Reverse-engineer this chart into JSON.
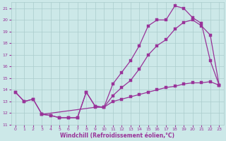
{
  "xlabel": "Windchill (Refroidissement éolien,°C)",
  "bg_color": "#cce8e8",
  "grid_color": "#aacccc",
  "line_color": "#993399",
  "xlim": [
    -0.5,
    23.5
  ],
  "ylim": [
    11,
    21.5
  ],
  "xticks": [
    0,
    1,
    2,
    3,
    4,
    5,
    6,
    7,
    8,
    9,
    10,
    11,
    12,
    13,
    14,
    15,
    16,
    17,
    18,
    19,
    20,
    21,
    22,
    23
  ],
  "yticks": [
    11,
    12,
    13,
    14,
    15,
    16,
    17,
    18,
    19,
    20,
    21
  ],
  "line1_x": [
    0,
    1,
    2,
    3,
    4,
    5,
    6,
    7,
    8,
    9,
    10,
    11,
    12,
    13,
    14,
    15,
    16,
    17,
    18,
    19,
    20,
    21,
    22,
    23
  ],
  "line1_y": [
    13.8,
    13.0,
    13.2,
    11.9,
    11.8,
    11.6,
    11.6,
    11.6,
    13.8,
    12.6,
    12.5,
    14.5,
    15.5,
    16.5,
    17.8,
    19.5,
    20.0,
    20.0,
    21.2,
    21.0,
    20.2,
    19.7,
    16.5,
    14.4
  ],
  "line2_x": [
    0,
    1,
    2,
    3,
    9,
    10,
    11,
    12,
    13,
    14,
    15,
    16,
    17,
    18,
    19,
    20,
    21,
    22,
    23
  ],
  "line2_y": [
    13.8,
    13.0,
    13.2,
    11.9,
    12.5,
    12.5,
    13.5,
    14.2,
    14.8,
    15.8,
    17.0,
    17.8,
    18.3,
    19.2,
    19.8,
    20.0,
    19.5,
    18.7,
    14.4
  ],
  "line3_x": [
    3,
    4,
    5,
    6,
    7,
    8,
    9,
    10,
    11,
    12,
    13,
    14,
    15,
    16,
    17,
    18,
    19,
    20,
    21,
    22,
    23
  ],
  "line3_y": [
    11.9,
    11.8,
    11.6,
    11.6,
    11.6,
    13.8,
    12.6,
    12.5,
    13.0,
    13.2,
    13.4,
    13.6,
    13.8,
    14.0,
    14.2,
    14.3,
    14.5,
    14.6,
    14.6,
    14.7,
    14.4
  ]
}
